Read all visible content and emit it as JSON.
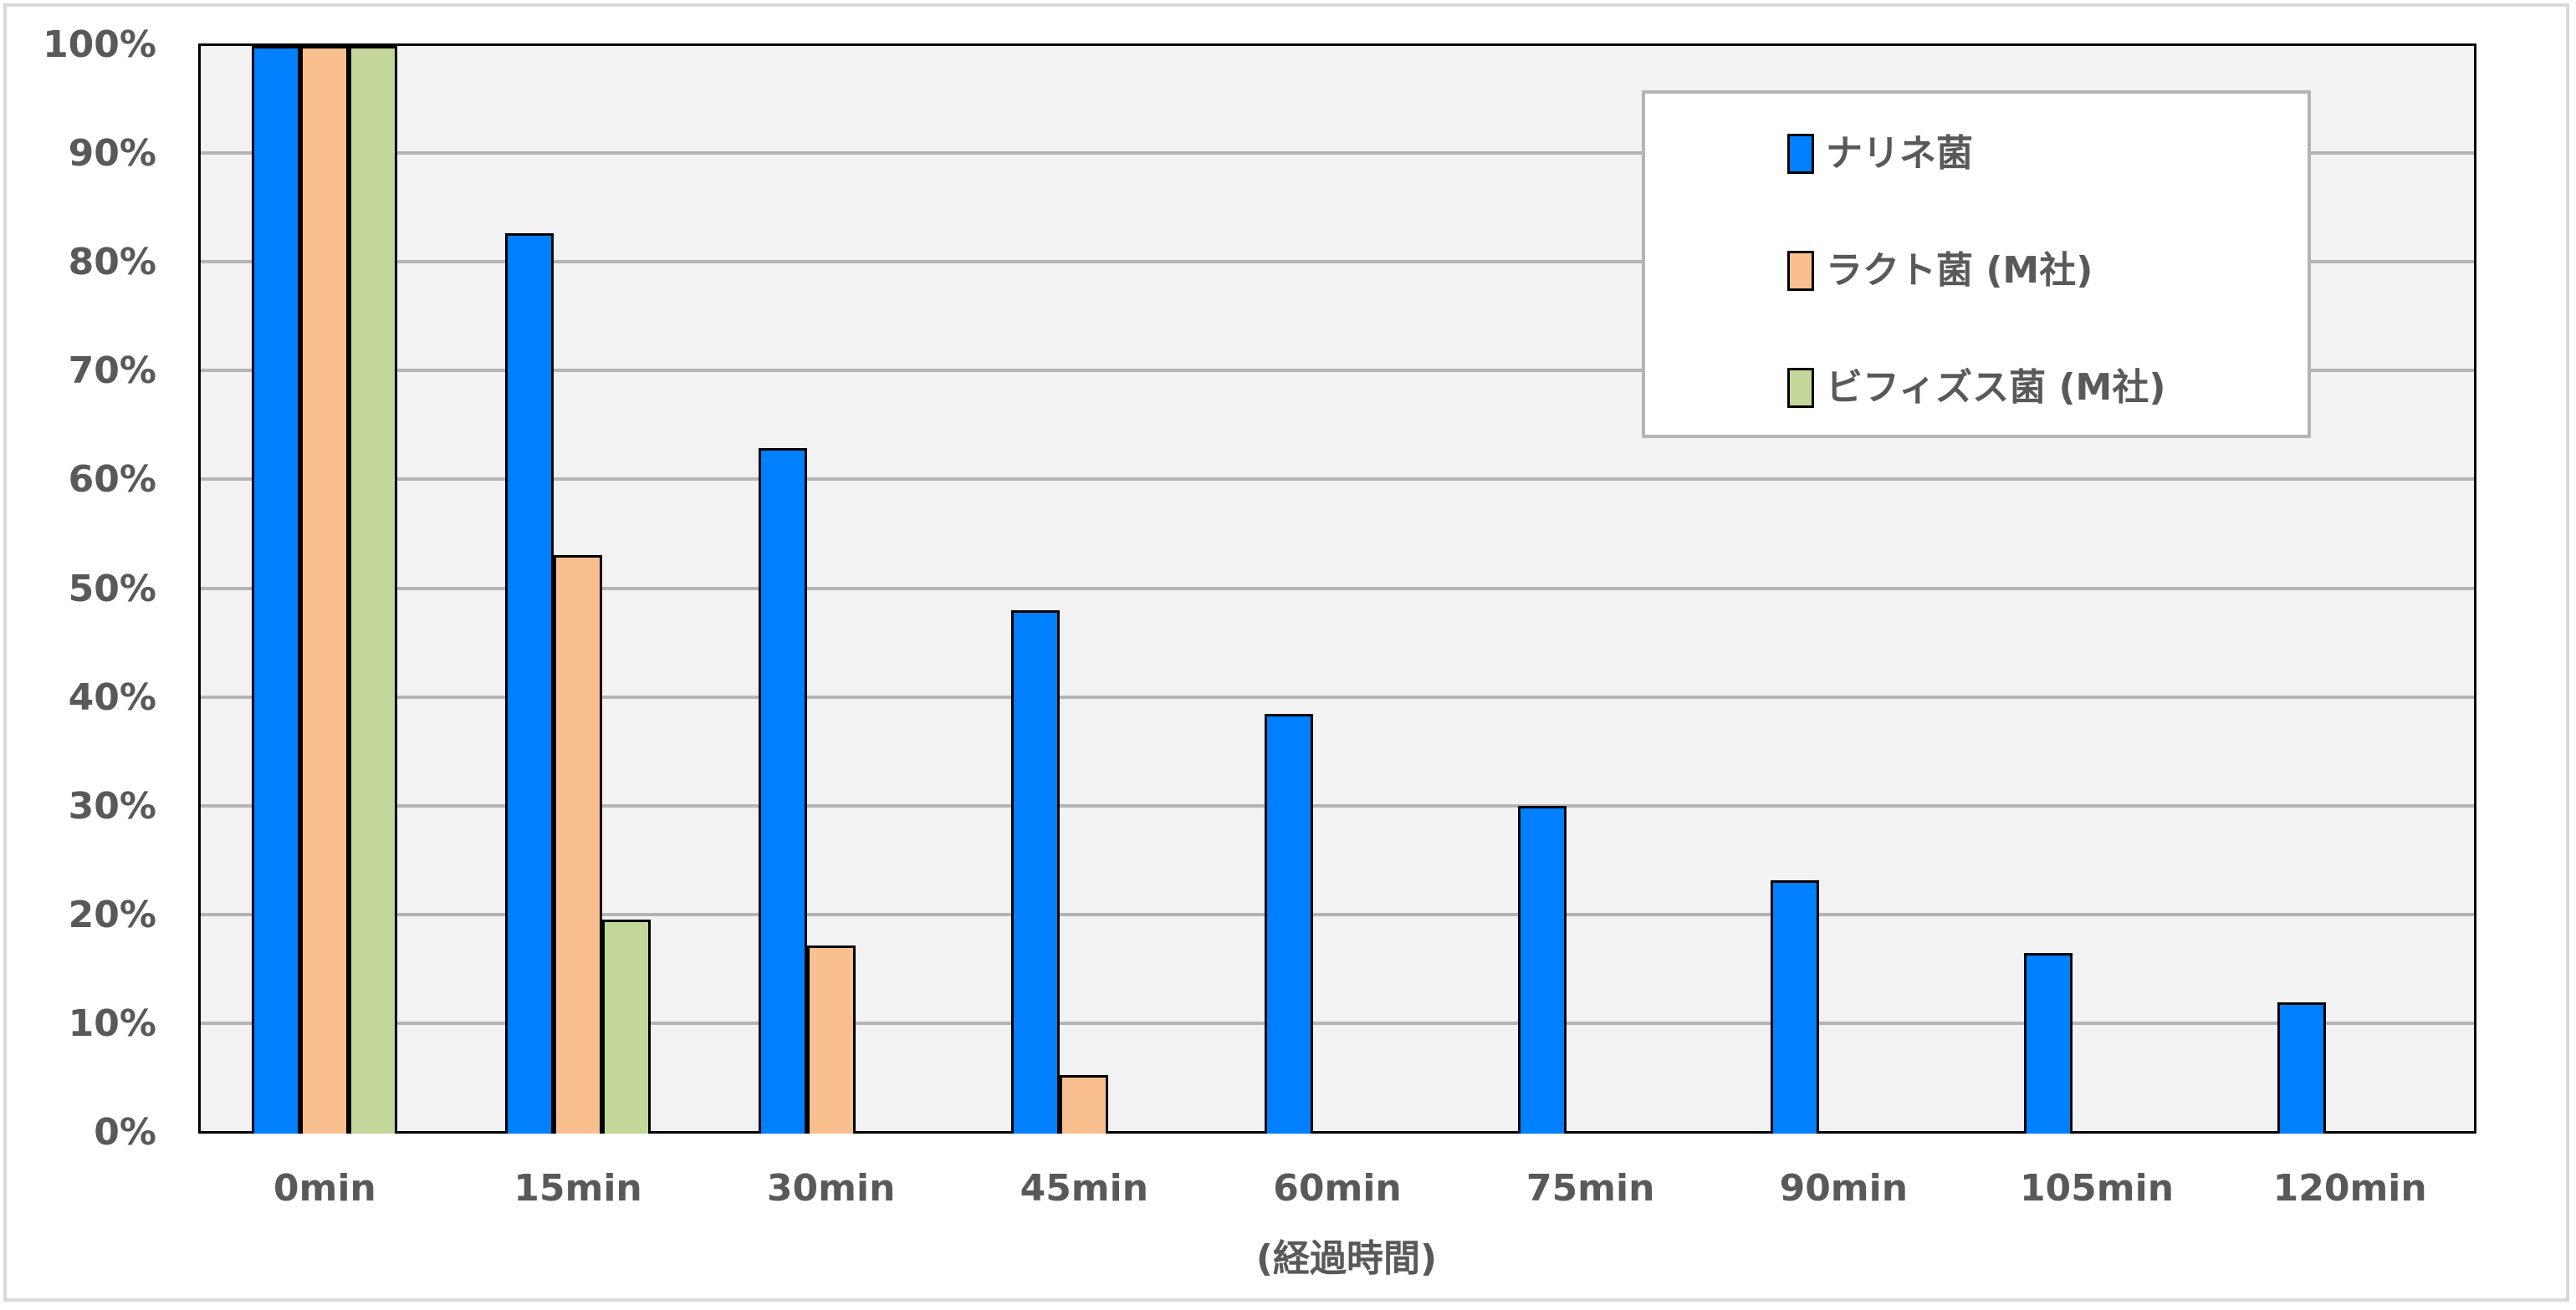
{
  "chart_data": {
    "type": "bar",
    "title": "",
    "xlabel": "(経過時間)",
    "ylabel": "",
    "ylim": [
      0,
      100
    ],
    "y_unit": "%",
    "grid": true,
    "legend_position": "top-right (inside plot)",
    "yticks": [
      "0%",
      "10%",
      "20%",
      "30%",
      "40%",
      "50%",
      "60%",
      "70%",
      "80%",
      "90%",
      "100%"
    ],
    "categories": [
      "0min",
      "15min",
      "30min",
      "45min",
      "60min",
      "75min",
      "90min",
      "105min",
      "120min"
    ],
    "series": [
      {
        "name": "ナリネ菌",
        "color": "#007fff",
        "values": [
          100,
          82.8,
          63.0,
          48.1,
          38.6,
          30.1,
          23.3,
          16.6,
          12.1
        ]
      },
      {
        "name": "ラクト菌 (M社)",
        "color": "#f9c08f",
        "values": [
          100,
          53.2,
          17.3,
          5.4,
          null,
          null,
          null,
          null,
          null
        ]
      },
      {
        "name": "ビフィズス菌 (M社)",
        "color": "#c4d79b",
        "values": [
          100,
          19.7,
          null,
          null,
          null,
          null,
          null,
          null,
          null
        ]
      }
    ]
  },
  "colors": {
    "plot_bg": "#f2f2f2",
    "gridline": "#b4b4b4",
    "text": "#595959",
    "frame": "#d9d9d9"
  }
}
